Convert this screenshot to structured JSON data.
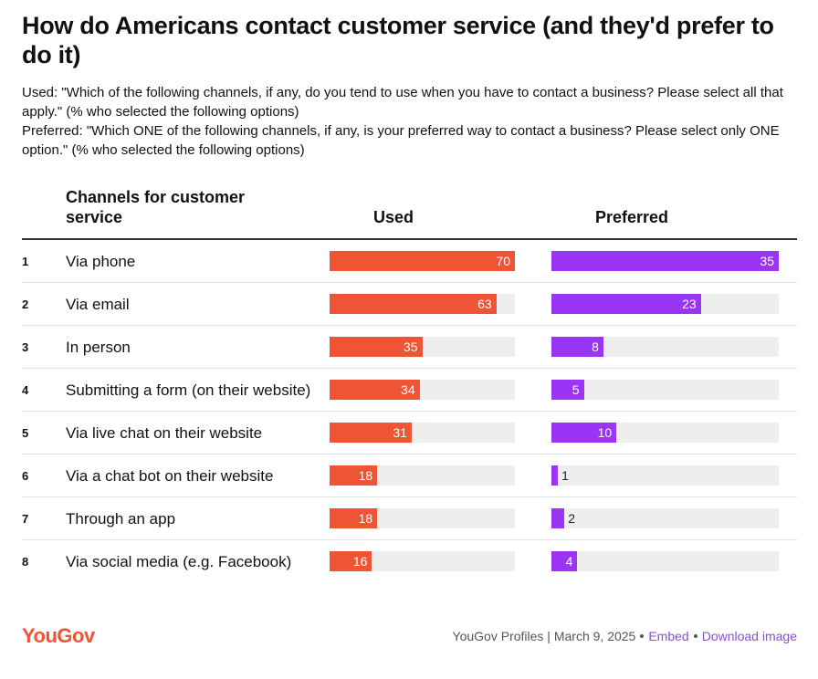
{
  "chart_data": {
    "type": "bar",
    "title": "How do Americans contact customer service (and they'd prefer to do it)",
    "used_question": "Used: \"Which of the following channels, if any, do you tend to use when you have to contact a business? Please select all that apply.\" (% who selected the following options)",
    "preferred_question": "Preferred: \"Which ONE of the following channels, if any, is your preferred way to contact a business? Please select only ONE option.\" (% who selected the following options)",
    "category_header": "Channels for customer service",
    "ranks": [
      1,
      2,
      3,
      4,
      5,
      6,
      7,
      8
    ],
    "categories": [
      "Via phone",
      "Via email",
      "In person",
      "Submitting a form (on their website)",
      "Via live chat on their website",
      "Via a chat bot on their website",
      "Through an app",
      "Via social media (e.g. Facebook)"
    ],
    "series": [
      {
        "name": "Used",
        "color": "#ef5535",
        "values": [
          70,
          63,
          35,
          34,
          31,
          18,
          18,
          16
        ]
      },
      {
        "name": "Preferred",
        "color": "#9a35f5",
        "values": [
          35,
          23,
          8,
          5,
          10,
          1,
          2,
          4
        ]
      }
    ],
    "logo": "YouGov",
    "footer": "YouGov Profiles | March 9, 2025",
    "links": [
      "Embed",
      "Download image"
    ]
  }
}
